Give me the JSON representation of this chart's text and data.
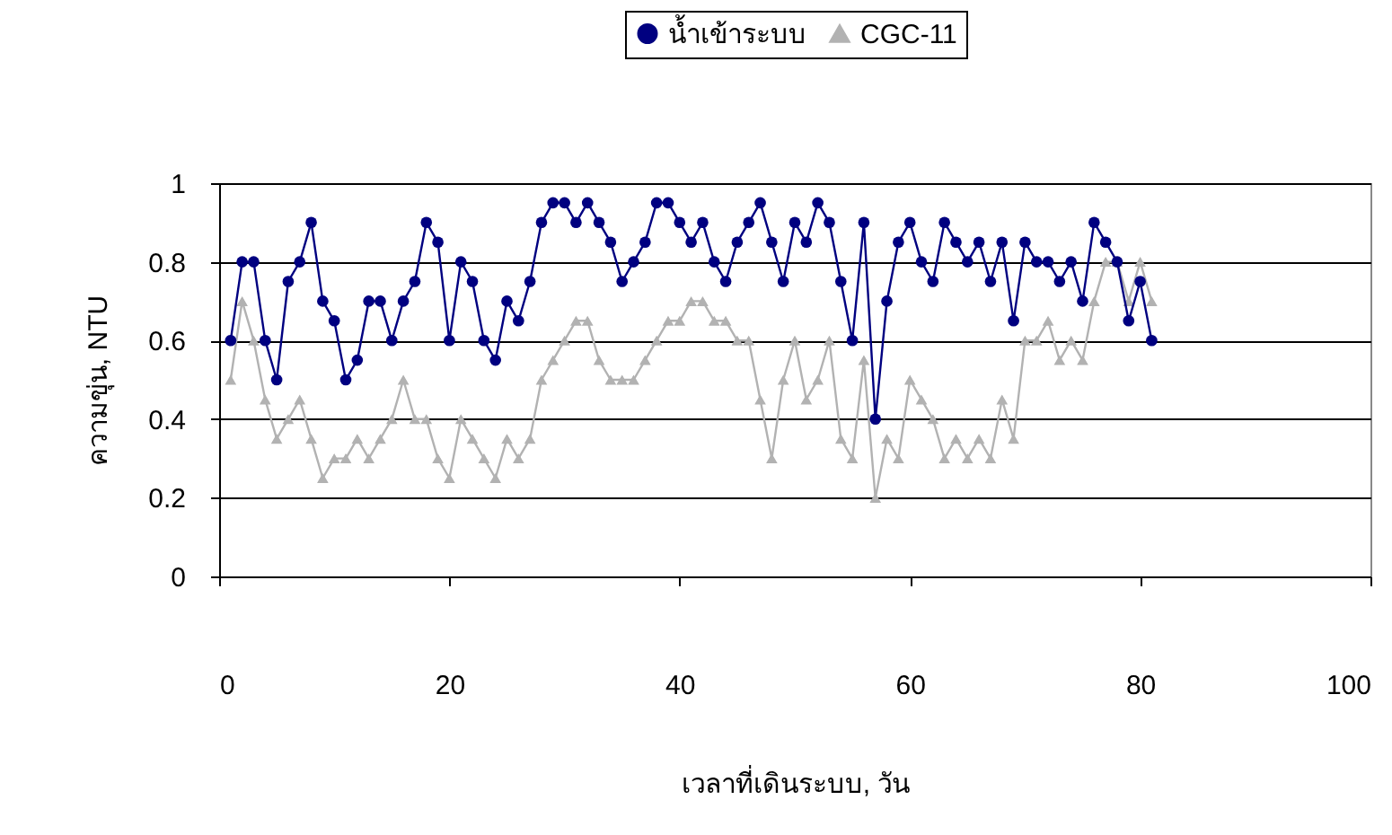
{
  "chart_data": {
    "type": "line",
    "xlabel": "เวลาที่เดินระบบ, วัน",
    "ylabel": "ความขุ่น, NTU",
    "x": [
      1,
      2,
      3,
      4,
      5,
      6,
      7,
      8,
      9,
      10,
      11,
      12,
      13,
      14,
      15,
      16,
      17,
      18,
      19,
      20,
      21,
      22,
      23,
      24,
      25,
      26,
      27,
      28,
      29,
      30,
      31,
      32,
      33,
      34,
      35,
      36,
      37,
      38,
      39,
      40,
      41,
      42,
      43,
      44,
      45,
      46,
      47,
      48,
      49,
      50,
      51,
      52,
      53,
      54,
      55,
      56,
      57,
      58,
      59,
      60,
      61,
      62,
      63,
      64,
      65,
      66,
      67,
      68,
      69,
      70,
      71,
      72,
      73,
      74,
      75,
      76,
      77,
      78,
      79,
      80,
      81
    ],
    "series": [
      {
        "name": "น้ำเข้าระบบ",
        "color": "#000080",
        "marker": "circle",
        "values": [
          0.6,
          0.8,
          0.8,
          0.6,
          0.5,
          0.75,
          0.8,
          0.9,
          0.7,
          0.65,
          0.5,
          0.55,
          0.7,
          0.7,
          0.6,
          0.7,
          0.75,
          0.9,
          0.85,
          0.6,
          0.8,
          0.75,
          0.6,
          0.55,
          0.7,
          0.65,
          0.75,
          0.9,
          0.95,
          0.95,
          0.9,
          0.95,
          0.9,
          0.85,
          0.75,
          0.8,
          0.85,
          0.95,
          0.95,
          0.9,
          0.85,
          0.9,
          0.8,
          0.75,
          0.85,
          0.9,
          0.95,
          0.85,
          0.75,
          0.9,
          0.85,
          0.95,
          0.9,
          0.75,
          0.6,
          0.9,
          0.4,
          0.7,
          0.85,
          0.9,
          0.8,
          0.75,
          0.9,
          0.85,
          0.8,
          0.85,
          0.75,
          0.85,
          0.65,
          0.85,
          0.8,
          0.8,
          0.75,
          0.8,
          0.7,
          0.9,
          0.85,
          0.8,
          0.65,
          0.75,
          0.6
        ]
      },
      {
        "name": "CGC-11",
        "color": "#b2b2b2",
        "marker": "triangle",
        "values": [
          0.5,
          0.7,
          0.6,
          0.45,
          0.35,
          0.4,
          0.45,
          0.35,
          0.25,
          0.3,
          0.3,
          0.35,
          0.3,
          0.35,
          0.4,
          0.5,
          0.4,
          0.4,
          0.3,
          0.25,
          0.4,
          0.35,
          0.3,
          0.25,
          0.35,
          0.3,
          0.35,
          0.5,
          0.55,
          0.6,
          0.65,
          0.65,
          0.55,
          0.5,
          0.5,
          0.5,
          0.55,
          0.6,
          0.65,
          0.65,
          0.7,
          0.7,
          0.65,
          0.65,
          0.6,
          0.6,
          0.45,
          0.3,
          0.5,
          0.6,
          0.45,
          0.5,
          0.6,
          0.35,
          0.3,
          0.55,
          0.2,
          0.35,
          0.3,
          0.5,
          0.45,
          0.4,
          0.3,
          0.35,
          0.3,
          0.35,
          0.3,
          0.45,
          0.35,
          0.6,
          0.6,
          0.65,
          0.55,
          0.6,
          0.55,
          0.7,
          0.8,
          0.8,
          0.7,
          0.8,
          0.7
        ]
      }
    ],
    "xlim": [
      0,
      100
    ],
    "xticks": [
      0,
      20,
      40,
      60,
      80,
      100
    ],
    "ylim": [
      0,
      1
    ],
    "yticks": [
      0,
      0.2,
      0.4,
      0.6,
      0.8,
      1
    ],
    "grid": "y",
    "legend": "top",
    "line_style": "solid"
  }
}
